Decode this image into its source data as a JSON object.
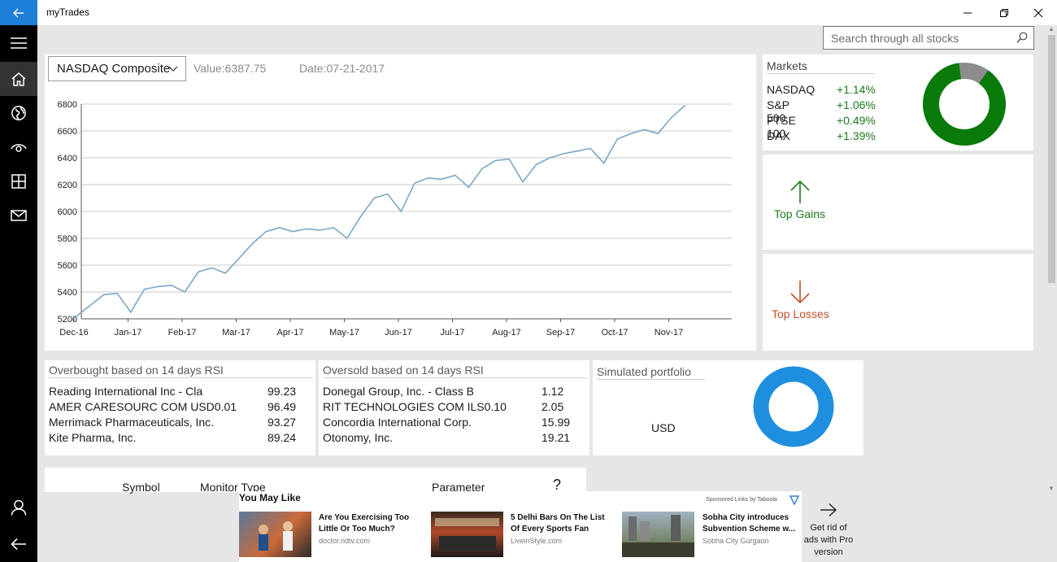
{
  "app": {
    "title": "myTrades",
    "back_icon": "back-arrow-icon",
    "window_controls": [
      "minimize-icon",
      "restore-icon",
      "close-icon"
    ]
  },
  "nav": {
    "items": [
      {
        "icon": "hamburger-icon"
      },
      {
        "icon": "home-icon",
        "active": true
      },
      {
        "icon": "globe-icon"
      },
      {
        "icon": "eye-icon"
      },
      {
        "icon": "grid-icon"
      },
      {
        "icon": "mail-icon"
      },
      {
        "icon": "person-icon"
      },
      {
        "icon": "back-arrow-icon"
      }
    ]
  },
  "search": {
    "placeholder": "Search through all stocks",
    "icon": "search-icon"
  },
  "chart_panel": {
    "index_selected": "NASDAQ Composite",
    "value_label": "Value:6387.75",
    "date_label": "Date:07-21-2017"
  },
  "chart_data": {
    "type": "line",
    "title": "",
    "xlabel": "",
    "ylabel": "",
    "ylim": [
      5200,
      6800
    ],
    "y_ticks": [
      5200,
      5400,
      5600,
      5800,
      6000,
      6200,
      6400,
      6600,
      6800
    ],
    "x_ticks": [
      "Dec-16",
      "Jan-17",
      "Feb-17",
      "Mar-17",
      "Apr-17",
      "May-17",
      "Jun-17",
      "Jul-17",
      "Aug-17",
      "Sep-17",
      "Oct-17",
      "Nov-17"
    ],
    "grid": "horizontal",
    "line_color": "#7aa7c7",
    "series": [
      {
        "x": [
          0.0,
          0.3,
          0.55,
          0.8,
          1.05,
          1.3,
          1.55,
          1.8,
          2.05,
          2.3,
          2.55,
          2.8,
          3.05,
          3.3,
          3.55,
          3.8,
          4.05,
          4.3,
          4.55,
          4.8,
          5.05,
          5.3,
          5.55,
          5.8,
          6.05,
          6.3,
          6.55,
          6.8,
          7.05,
          7.3,
          7.55,
          7.8,
          8.05,
          8.3,
          8.55,
          8.8,
          9.05,
          9.3,
          9.55,
          9.8,
          10.05,
          10.3,
          10.55,
          10.8,
          11.05,
          11.3
        ],
        "values": [
          5205,
          5300,
          5380,
          5390,
          5250,
          5420,
          5440,
          5450,
          5400,
          5550,
          5580,
          5540,
          5650,
          5760,
          5850,
          5880,
          5850,
          5870,
          5860,
          5880,
          5800,
          5960,
          6100,
          6130,
          6000,
          6210,
          6250,
          6240,
          6270,
          6180,
          6320,
          6380,
          6390,
          6220,
          6350,
          6400,
          6430,
          6450,
          6470,
          6360,
          6540,
          6580,
          6610,
          6580,
          6700,
          6790
        ]
      }
    ]
  },
  "markets": {
    "title": "Markets",
    "rows": [
      {
        "name": "NASDAQ",
        "change": "+1.14%"
      },
      {
        "name": "S&P 500",
        "change": "+1.06%"
      },
      {
        "name": "FTSE 100",
        "change": "+0.49%"
      },
      {
        "name": "DAX",
        "change": "+1.39%"
      }
    ],
    "donut": {
      "green_fraction": 0.88,
      "green": "#0a7a0a",
      "gray": "#8c8c8c"
    }
  },
  "tiles": {
    "gains_label": "Top Gains",
    "gains_icon": "arrow-up-icon",
    "gains_color": "#1e7a1e",
    "losses_label": "Top Losses",
    "losses_icon": "arrow-down-icon",
    "losses_color": "#c0502a"
  },
  "overbought": {
    "title": "Overbought based on 14 days RSI",
    "rows": [
      {
        "name": "Reading International Inc - Cla",
        "value": "99.23"
      },
      {
        "name": "AMER CARESOURC COM USD0.01",
        "value": "96.49"
      },
      {
        "name": "Merrimack Pharmaceuticals, Inc.",
        "value": "93.27"
      },
      {
        "name": "Kite Pharma, Inc.",
        "value": "89.24"
      }
    ]
  },
  "oversold": {
    "title": "Oversold based on 14 days RSI",
    "rows": [
      {
        "name": "Donegal Group, Inc. - Class B",
        "value": "1.12"
      },
      {
        "name": "RIT TECHNOLOGIES COM ILS0.10",
        "value": "2.05"
      },
      {
        "name": "Concordia International Corp.",
        "value": "15.99"
      },
      {
        "name": "Otonomy, Inc.",
        "value": "19.21"
      }
    ]
  },
  "portfolio": {
    "title": "Simulated portfolio",
    "currency": "USD",
    "ring_color": "#1e8fde"
  },
  "monitor": {
    "col_symbol": "Symbol",
    "col_type": "Monitor Type",
    "col_param": "Parameter",
    "help": "?"
  },
  "ads": {
    "heading": "You May Like",
    "sponsor": "Sponsored Links by Taboola",
    "items": [
      {
        "headline": "Are You Exercising Too Little Or Too Much?",
        "source": "doctor.ndtv.com"
      },
      {
        "headline": "5 Delhi Bars On The List Of Every Sports Fan",
        "source": "LiveinStyle.com"
      },
      {
        "headline": "Sobha City introduces Subvention Scheme w...",
        "source": "Sobha City Gurgaon"
      }
    ],
    "pro_text": "Get rid of ads with Pro version",
    "pro_icon": "arrow-right-icon"
  }
}
